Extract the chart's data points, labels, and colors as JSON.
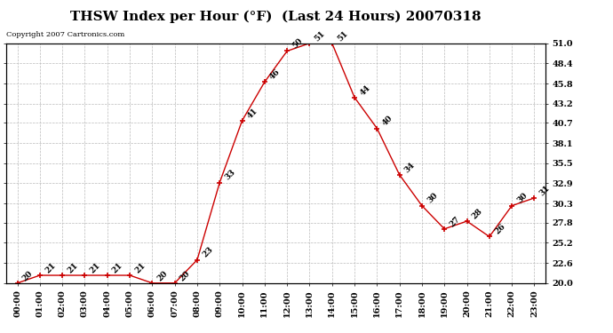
{
  "title": "THSW Index per Hour (°F)  (Last 24 Hours) 20070318",
  "copyright": "Copyright 2007 Cartronics.com",
  "hours": [
    "00:00",
    "01:00",
    "02:00",
    "03:00",
    "04:00",
    "05:00",
    "06:00",
    "07:00",
    "08:00",
    "09:00",
    "10:00",
    "11:00",
    "12:00",
    "13:00",
    "14:00",
    "15:00",
    "16:00",
    "17:00",
    "18:00",
    "19:00",
    "20:00",
    "21:00",
    "22:00",
    "23:00"
  ],
  "values": [
    20,
    21,
    21,
    21,
    21,
    21,
    20,
    20,
    23,
    33,
    41,
    46,
    50,
    51,
    51,
    44,
    40,
    34,
    30,
    27,
    28,
    26,
    30,
    31
  ],
  "ylim_min": 20.0,
  "ylim_max": 51.0,
  "yticks": [
    20.0,
    22.6,
    25.2,
    27.8,
    30.3,
    32.9,
    35.5,
    38.1,
    40.7,
    43.2,
    45.8,
    48.4,
    51.0
  ],
  "line_color": "#cc0000",
  "marker_color": "#cc0000",
  "bg_color": "#ffffff",
  "grid_color": "#bbbbbb",
  "title_fontsize": 11,
  "tick_fontsize": 7,
  "annot_fontsize": 6.5
}
